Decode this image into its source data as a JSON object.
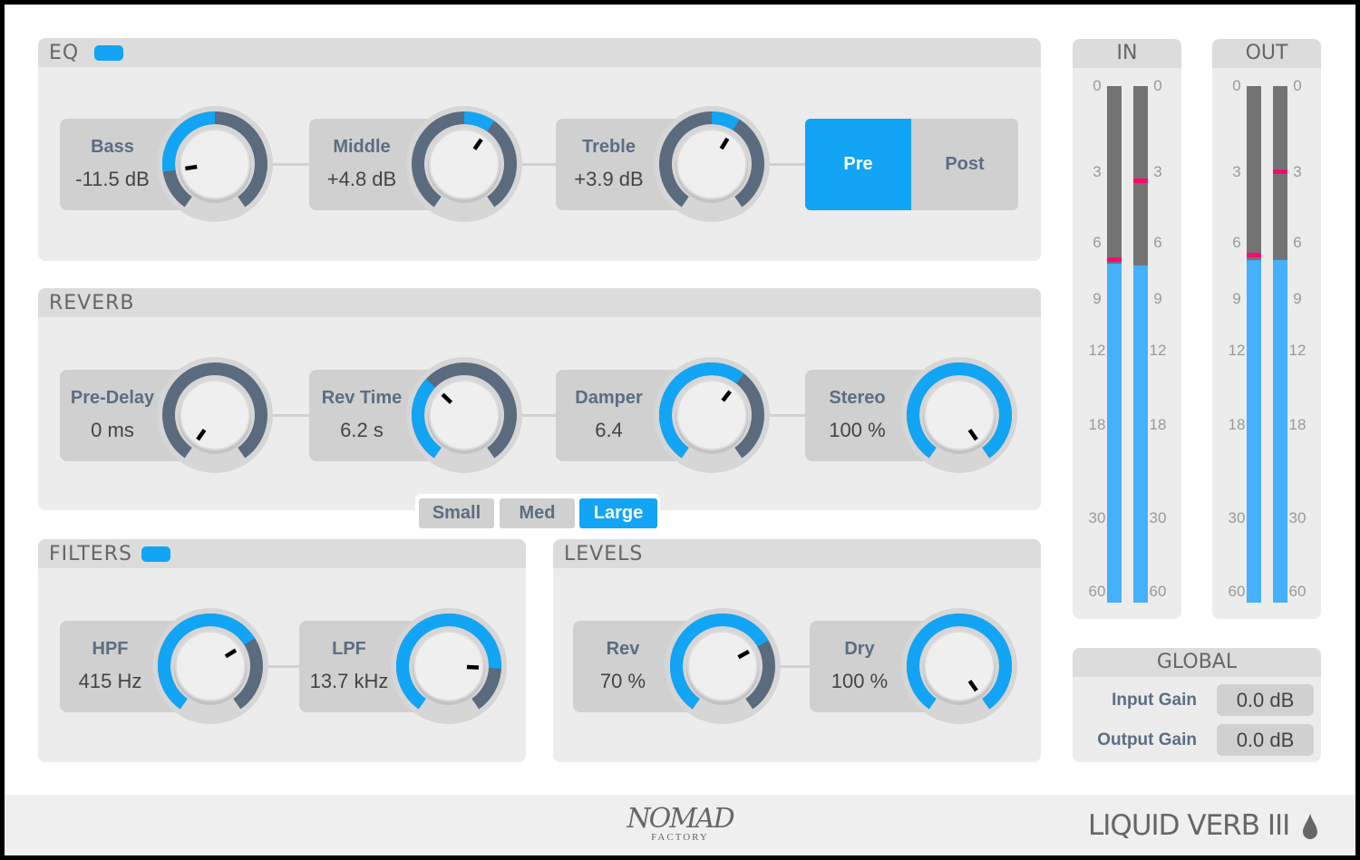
{
  "colors": {
    "accent": "#12a4f5",
    "track": "#5a6b7e",
    "peak": "#ff0a6c",
    "meter_bg": "#737373",
    "meter_fill": "#45b0fc"
  },
  "eq": {
    "title": "EQ",
    "enabled": true,
    "knobs": [
      {
        "label": "Bass",
        "value": "-11.5 dB",
        "position": 0.16,
        "bipolar": true
      },
      {
        "label": "Middle",
        "value": "+4.8 dB",
        "position": 0.62,
        "bipolar": true
      },
      {
        "label": "Treble",
        "value": "+3.9 dB",
        "position": 0.61,
        "bipolar": true
      }
    ],
    "pre_label": "Pre",
    "post_label": "Post",
    "selected": "Pre"
  },
  "reverb": {
    "title": "REVERB",
    "knobs": [
      {
        "label": "Pre-Delay",
        "value": "0 ms",
        "position": 0.0,
        "bipolar": false
      },
      {
        "label": "Rev Time",
        "value": "6.2 s",
        "position": 0.34,
        "bipolar": false
      },
      {
        "label": "Damper",
        "value": "6.4",
        "position": 0.63,
        "bipolar": false
      },
      {
        "label": "Stereo",
        "value": "100 %",
        "position": 1.0,
        "bipolar": false
      }
    ],
    "sizes": [
      "Small",
      "Med",
      "Large"
    ],
    "selected_size": "Large"
  },
  "filters": {
    "title": "FILTERS",
    "enabled": true,
    "knobs": [
      {
        "label": "HPF",
        "value": "415 Hz",
        "position": 0.7,
        "bipolar": false
      },
      {
        "label": "LPF",
        "value": "13.7 kHz",
        "position": 0.82,
        "bipolar": false,
        "reverse": true
      }
    ]
  },
  "levels": {
    "title": "LEVELS",
    "knobs": [
      {
        "label": "Rev",
        "value": "70 %",
        "position": 0.71,
        "bipolar": false
      },
      {
        "label": "Dry",
        "value": "100 %",
        "position": 1.0,
        "bipolar": false
      }
    ]
  },
  "meters": {
    "scale": [
      "0",
      "3",
      "6",
      "9",
      "12",
      "18",
      "30",
      "60"
    ],
    "in": {
      "title": "IN",
      "left": {
        "level_db": 7.1,
        "peak_db": 6.9
      },
      "right": {
        "level_db": 7.2,
        "peak_db": 3.4
      }
    },
    "out": {
      "title": "OUT",
      "left": {
        "level_db": 6.9,
        "peak_db": 6.7
      },
      "right": {
        "level_db": 6.9,
        "peak_db": 3.0
      }
    }
  },
  "global": {
    "title": "GLOBAL",
    "input_gain_label": "Input Gain",
    "input_gain": "0.0 dB",
    "output_gain_label": "Output Gain",
    "output_gain": "0.0 dB"
  },
  "footer": {
    "brand": "NOMAD",
    "brand_sub": "FACTORY",
    "product": "LIQUID VERB III",
    "product_icon": "droplet-icon"
  }
}
